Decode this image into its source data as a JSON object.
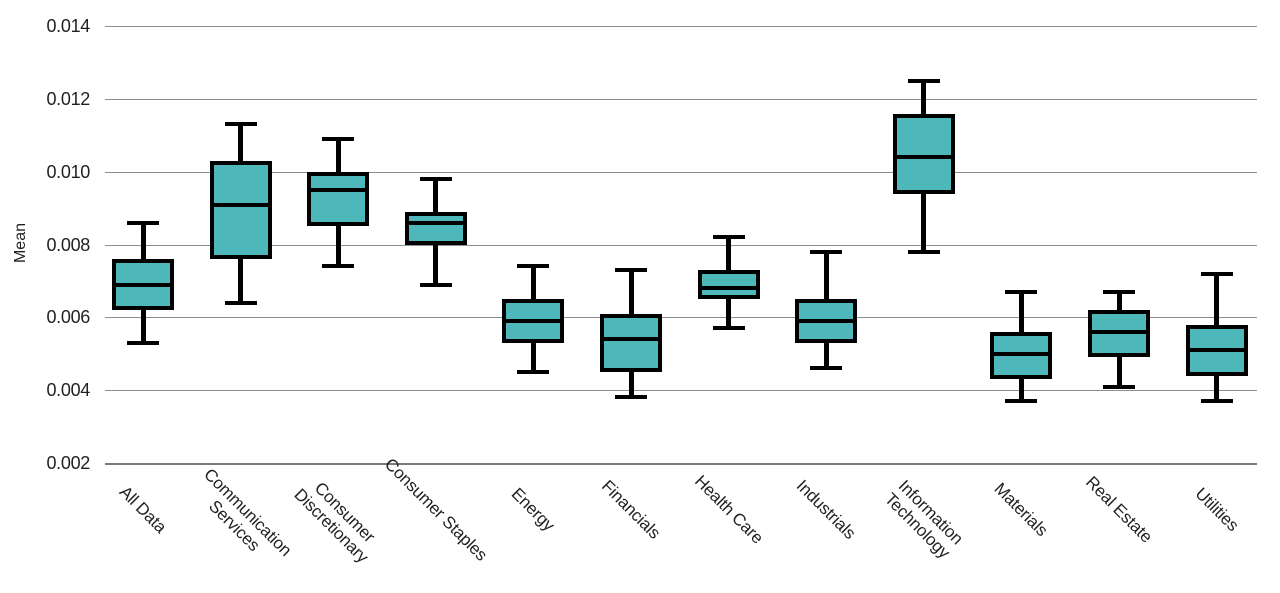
{
  "chart_data": {
    "type": "boxplot",
    "title": "",
    "xlabel": "",
    "ylabel": "Mean",
    "ylim": [
      0.002,
      0.0145
    ],
    "grid": "horizontal-gridlines",
    "legend": "none",
    "box_fill_color": "#4db7ba",
    "line_color": "#000000",
    "gridline_color": "#8e8e8e",
    "yticks": [
      {
        "value": 0.014,
        "label": "0.014"
      },
      {
        "value": 0.012,
        "label": "0.012"
      },
      {
        "value": 0.01,
        "label": "0.010"
      },
      {
        "value": 0.008,
        "label": "0.008"
      },
      {
        "value": 0.006,
        "label": "0.006"
      },
      {
        "value": 0.004,
        "label": "0.004"
      },
      {
        "value": 0.002,
        "label": "0.002"
      }
    ],
    "categories": [
      "All Data",
      "Communication Services",
      "Consumer Discretionary",
      "Consumer Staples",
      "Energy",
      "Financials",
      "Health Care",
      "Industrials",
      "Information Technology",
      "Materials",
      "Real Estate",
      "Utilities"
    ],
    "boxes": [
      {
        "category": "All Data",
        "lines": [
          "All Data"
        ],
        "whisker_low": 0.0053,
        "q1": 0.0062,
        "median": 0.0069,
        "q3": 0.0076,
        "whisker_high": 0.0086
      },
      {
        "category": "Communication Services",
        "lines": [
          "Communication",
          "Services"
        ],
        "whisker_low": 0.0064,
        "q1": 0.0076,
        "median": 0.0091,
        "q3": 0.0103,
        "whisker_high": 0.0113
      },
      {
        "category": "Consumer Discretionary",
        "lines": [
          "Consumer",
          "Discretionary"
        ],
        "whisker_low": 0.0074,
        "q1": 0.0085,
        "median": 0.0095,
        "q3": 0.01,
        "whisker_high": 0.0109
      },
      {
        "category": "Consumer Staples",
        "lines": [
          "Consumer Staples"
        ],
        "whisker_low": 0.0069,
        "q1": 0.008,
        "median": 0.0086,
        "q3": 0.0089,
        "whisker_high": 0.0098
      },
      {
        "category": "Energy",
        "lines": [
          "Energy"
        ],
        "whisker_low": 0.0045,
        "q1": 0.0053,
        "median": 0.0059,
        "q3": 0.0065,
        "whisker_high": 0.0074
      },
      {
        "category": "Financials",
        "lines": [
          "Financials"
        ],
        "whisker_low": 0.0038,
        "q1": 0.0045,
        "median": 0.0054,
        "q3": 0.0061,
        "whisker_high": 0.0073
      },
      {
        "category": "Health Care",
        "lines": [
          "Health Care"
        ],
        "whisker_low": 0.0057,
        "q1": 0.0065,
        "median": 0.0068,
        "q3": 0.0073,
        "whisker_high": 0.0082
      },
      {
        "category": "Industrials",
        "lines": [
          "Industrials"
        ],
        "whisker_low": 0.0046,
        "q1": 0.0053,
        "median": 0.0059,
        "q3": 0.0065,
        "whisker_high": 0.0078
      },
      {
        "category": "Information Technology",
        "lines": [
          "Information",
          "Technology"
        ],
        "whisker_low": 0.0078,
        "q1": 0.0094,
        "median": 0.0104,
        "q3": 0.0116,
        "whisker_high": 0.0125
      },
      {
        "category": "Materials",
        "lines": [
          "Materials"
        ],
        "whisker_low": 0.0037,
        "q1": 0.0043,
        "median": 0.005,
        "q3": 0.0056,
        "whisker_high": 0.0067
      },
      {
        "category": "Real Estate",
        "lines": [
          "Real Estate"
        ],
        "whisker_low": 0.0041,
        "q1": 0.0049,
        "median": 0.0056,
        "q3": 0.0062,
        "whisker_high": 0.0067
      },
      {
        "category": "Utilities",
        "lines": [
          "Utilities"
        ],
        "whisker_low": 0.0037,
        "q1": 0.0044,
        "median": 0.0051,
        "q3": 0.0058,
        "whisker_high": 0.0072
      }
    ]
  }
}
